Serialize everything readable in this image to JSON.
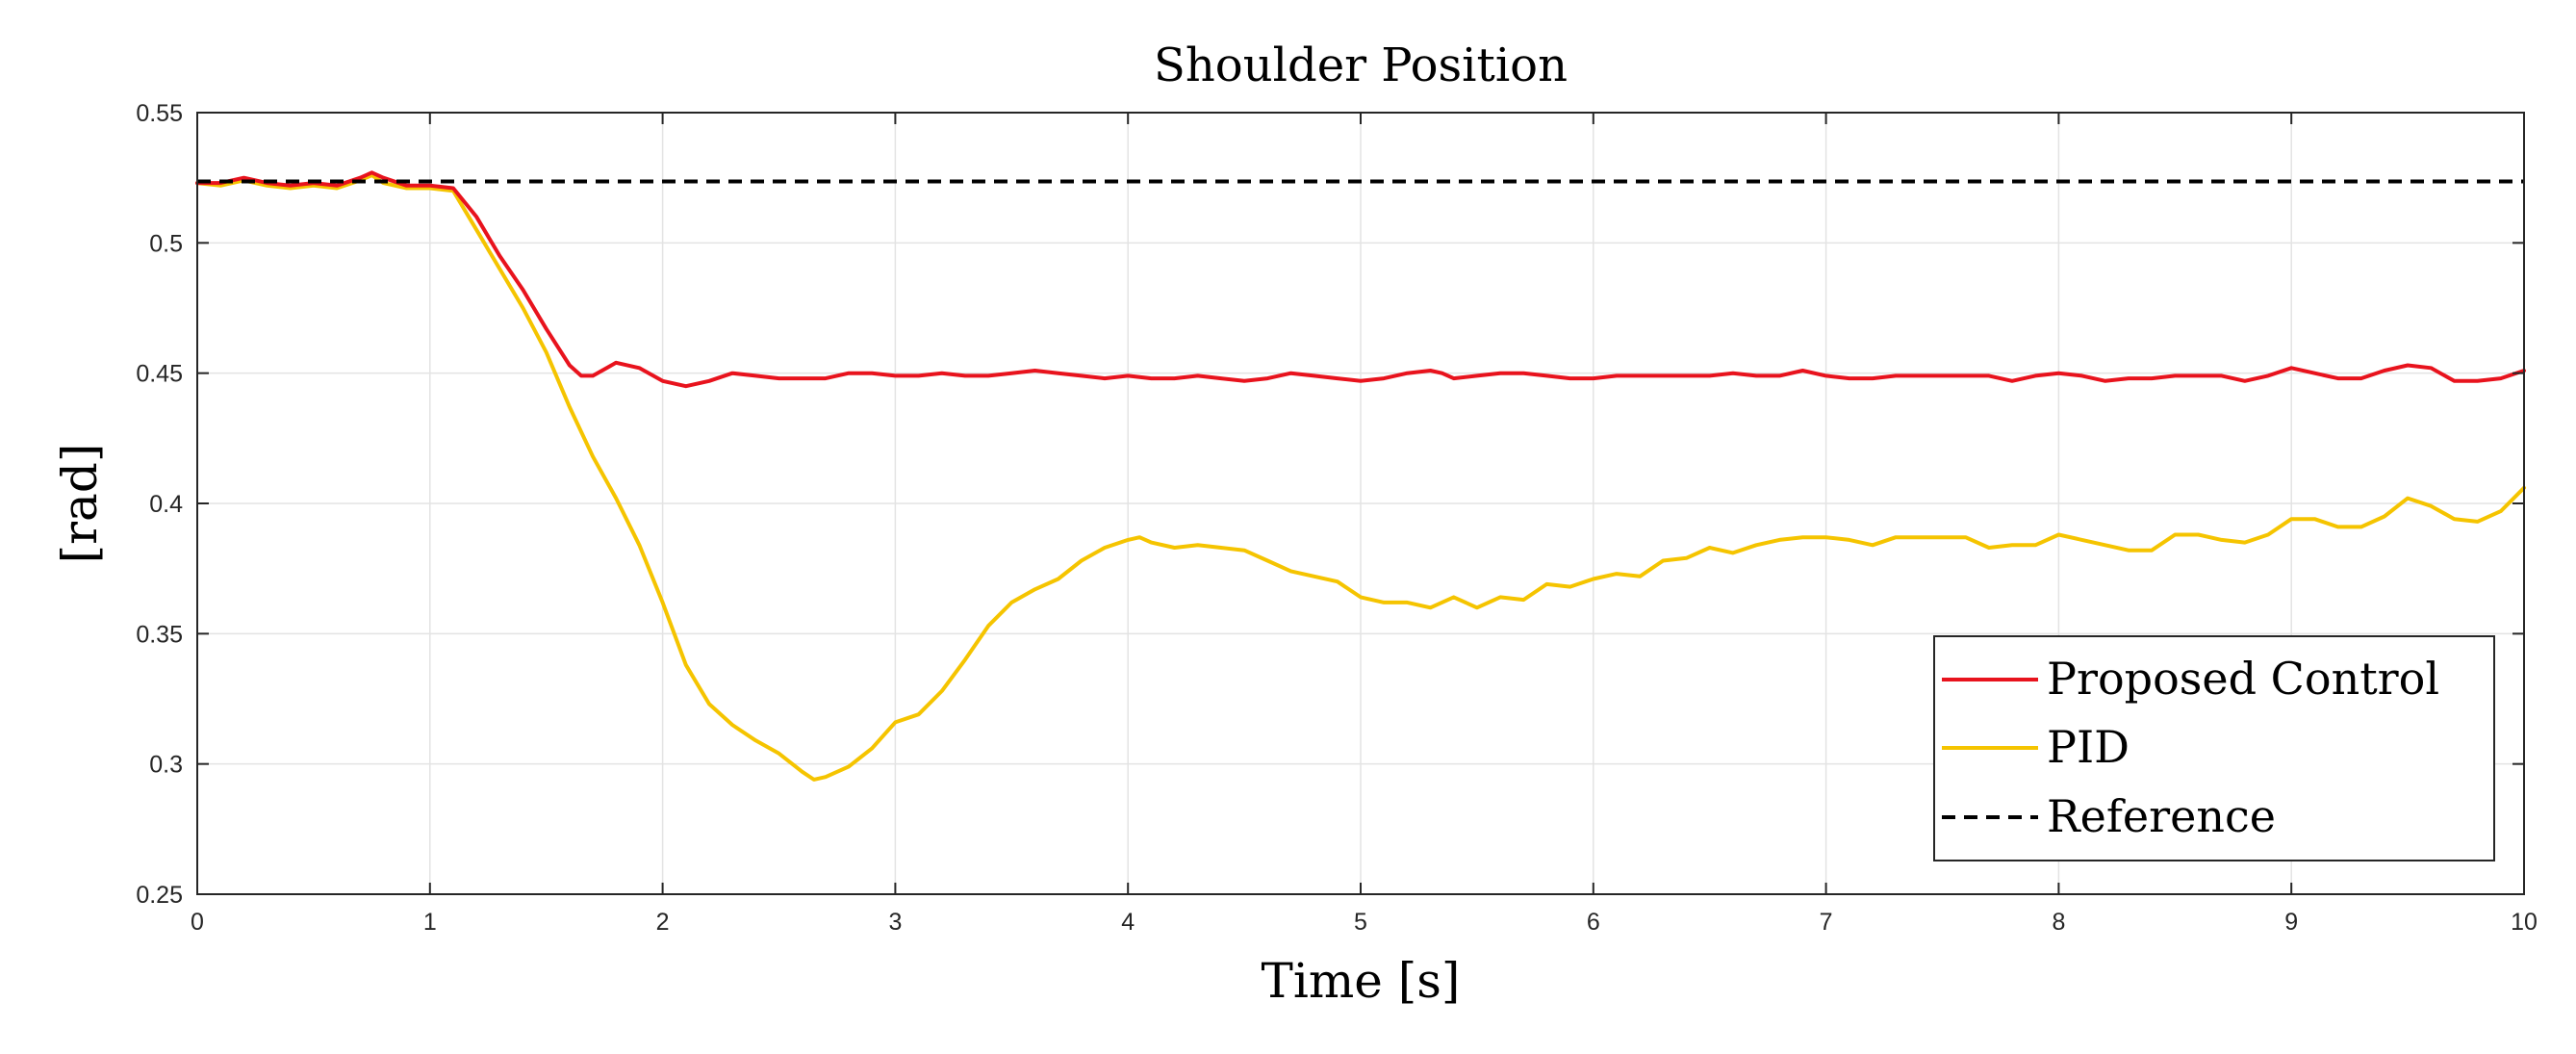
{
  "chart_data": {
    "type": "line",
    "title": "Shoulder Position",
    "xlabel": "Time [s]",
    "ylabel": "[rad]",
    "xlim": [
      0,
      10
    ],
    "ylim": [
      0.25,
      0.55
    ],
    "xticks": [
      0,
      1,
      2,
      3,
      4,
      5,
      6,
      7,
      8,
      9,
      10
    ],
    "yticks": [
      0.25,
      0.3,
      0.35,
      0.4,
      0.45,
      0.5,
      0.55
    ],
    "xtick_labels": [
      "0",
      "1",
      "2",
      "3",
      "4",
      "5",
      "6",
      "7",
      "8",
      "9",
      "10"
    ],
    "ytick_labels": [
      "0.25",
      "0.3",
      "0.35",
      "0.4",
      "0.45",
      "0.5",
      "0.55"
    ],
    "grid": true,
    "legend_position": "bottom-right",
    "series": [
      {
        "name": "Proposed Control",
        "color": "#e8131d",
        "style": "solid",
        "x": [
          0,
          0.1,
          0.2,
          0.3,
          0.4,
          0.5,
          0.6,
          0.7,
          0.75,
          0.8,
          0.9,
          1.0,
          1.1,
          1.2,
          1.3,
          1.4,
          1.5,
          1.6,
          1.65,
          1.7,
          1.8,
          1.9,
          2.0,
          2.1,
          2.2,
          2.3,
          2.4,
          2.5,
          2.6,
          2.7,
          2.8,
          2.9,
          3.0,
          3.1,
          3.2,
          3.3,
          3.4,
          3.5,
          3.6,
          3.7,
          3.8,
          3.9,
          4.0,
          4.1,
          4.2,
          4.3,
          4.4,
          4.5,
          4.6,
          4.7,
          4.8,
          4.9,
          5.0,
          5.1,
          5.2,
          5.3,
          5.35,
          5.4,
          5.5,
          5.6,
          5.7,
          5.8,
          5.9,
          6.0,
          6.1,
          6.2,
          6.3,
          6.4,
          6.5,
          6.6,
          6.7,
          6.8,
          6.9,
          7.0,
          7.1,
          7.2,
          7.3,
          7.4,
          7.5,
          7.6,
          7.7,
          7.8,
          7.9,
          8.0,
          8.1,
          8.2,
          8.3,
          8.4,
          8.5,
          8.6,
          8.7,
          8.8,
          8.9,
          9.0,
          9.1,
          9.2,
          9.3,
          9.4,
          9.5,
          9.6,
          9.7,
          9.8,
          9.9,
          10.0
        ],
        "y": [
          0.523,
          0.523,
          0.525,
          0.523,
          0.522,
          0.523,
          0.522,
          0.525,
          0.527,
          0.525,
          0.522,
          0.522,
          0.521,
          0.51,
          0.495,
          0.482,
          0.467,
          0.453,
          0.449,
          0.449,
          0.454,
          0.452,
          0.447,
          0.445,
          0.447,
          0.45,
          0.449,
          0.448,
          0.448,
          0.448,
          0.45,
          0.45,
          0.449,
          0.449,
          0.45,
          0.449,
          0.449,
          0.45,
          0.451,
          0.45,
          0.449,
          0.448,
          0.449,
          0.448,
          0.448,
          0.449,
          0.448,
          0.447,
          0.448,
          0.45,
          0.449,
          0.448,
          0.447,
          0.448,
          0.45,
          0.451,
          0.45,
          0.448,
          0.449,
          0.45,
          0.45,
          0.449,
          0.448,
          0.448,
          0.449,
          0.449,
          0.449,
          0.449,
          0.449,
          0.45,
          0.449,
          0.449,
          0.451,
          0.449,
          0.448,
          0.448,
          0.449,
          0.449,
          0.449,
          0.449,
          0.449,
          0.447,
          0.449,
          0.45,
          0.449,
          0.447,
          0.448,
          0.448,
          0.449,
          0.449,
          0.449,
          0.447,
          0.449,
          0.452,
          0.45,
          0.448,
          0.448,
          0.451,
          0.453,
          0.452,
          0.447,
          0.447,
          0.448,
          0.451
        ]
      },
      {
        "name": "PID",
        "color": "#f5c400",
        "style": "solid",
        "x": [
          0,
          0.1,
          0.2,
          0.3,
          0.4,
          0.5,
          0.6,
          0.7,
          0.75,
          0.8,
          0.9,
          1.0,
          1.1,
          1.2,
          1.3,
          1.4,
          1.5,
          1.6,
          1.7,
          1.8,
          1.9,
          2.0,
          2.1,
          2.2,
          2.3,
          2.4,
          2.5,
          2.6,
          2.65,
          2.7,
          2.8,
          2.9,
          3.0,
          3.1,
          3.2,
          3.3,
          3.4,
          3.5,
          3.6,
          3.7,
          3.8,
          3.9,
          4.0,
          4.05,
          4.1,
          4.2,
          4.3,
          4.4,
          4.5,
          4.6,
          4.7,
          4.8,
          4.9,
          5.0,
          5.1,
          5.2,
          5.3,
          5.4,
          5.5,
          5.6,
          5.7,
          5.8,
          5.9,
          6.0,
          6.1,
          6.2,
          6.3,
          6.4,
          6.5,
          6.6,
          6.7,
          6.8,
          6.9,
          7.0,
          7.1,
          7.2,
          7.3,
          7.4,
          7.5,
          7.6,
          7.7,
          7.8,
          7.9,
          8.0,
          8.1,
          8.2,
          8.3,
          8.4,
          8.5,
          8.6,
          8.7,
          8.8,
          8.9,
          9.0,
          9.1,
          9.2,
          9.3,
          9.4,
          9.5,
          9.6,
          9.7,
          9.8,
          9.9,
          10.0
        ],
        "y": [
          0.523,
          0.522,
          0.524,
          0.522,
          0.521,
          0.522,
          0.521,
          0.524,
          0.526,
          0.523,
          0.521,
          0.521,
          0.52,
          0.505,
          0.49,
          0.475,
          0.458,
          0.437,
          0.418,
          0.402,
          0.384,
          0.362,
          0.338,
          0.323,
          0.315,
          0.309,
          0.304,
          0.297,
          0.294,
          0.295,
          0.299,
          0.306,
          0.316,
          0.319,
          0.328,
          0.34,
          0.353,
          0.362,
          0.367,
          0.371,
          0.378,
          0.383,
          0.386,
          0.387,
          0.385,
          0.383,
          0.384,
          0.383,
          0.382,
          0.378,
          0.374,
          0.372,
          0.37,
          0.364,
          0.362,
          0.362,
          0.36,
          0.364,
          0.36,
          0.364,
          0.363,
          0.369,
          0.368,
          0.371,
          0.373,
          0.372,
          0.378,
          0.379,
          0.383,
          0.381,
          0.384,
          0.386,
          0.387,
          0.387,
          0.386,
          0.384,
          0.387,
          0.387,
          0.387,
          0.387,
          0.383,
          0.384,
          0.384,
          0.388,
          0.386,
          0.384,
          0.382,
          0.382,
          0.388,
          0.388,
          0.386,
          0.385,
          0.388,
          0.394,
          0.394,
          0.391,
          0.391,
          0.395,
          0.402,
          0.399,
          0.394,
          0.393,
          0.397,
          0.406
        ]
      },
      {
        "name": "Reference",
        "color": "#000000",
        "style": "dashed",
        "x": [
          0,
          10
        ],
        "y": [
          0.5236,
          0.5236
        ]
      }
    ]
  }
}
